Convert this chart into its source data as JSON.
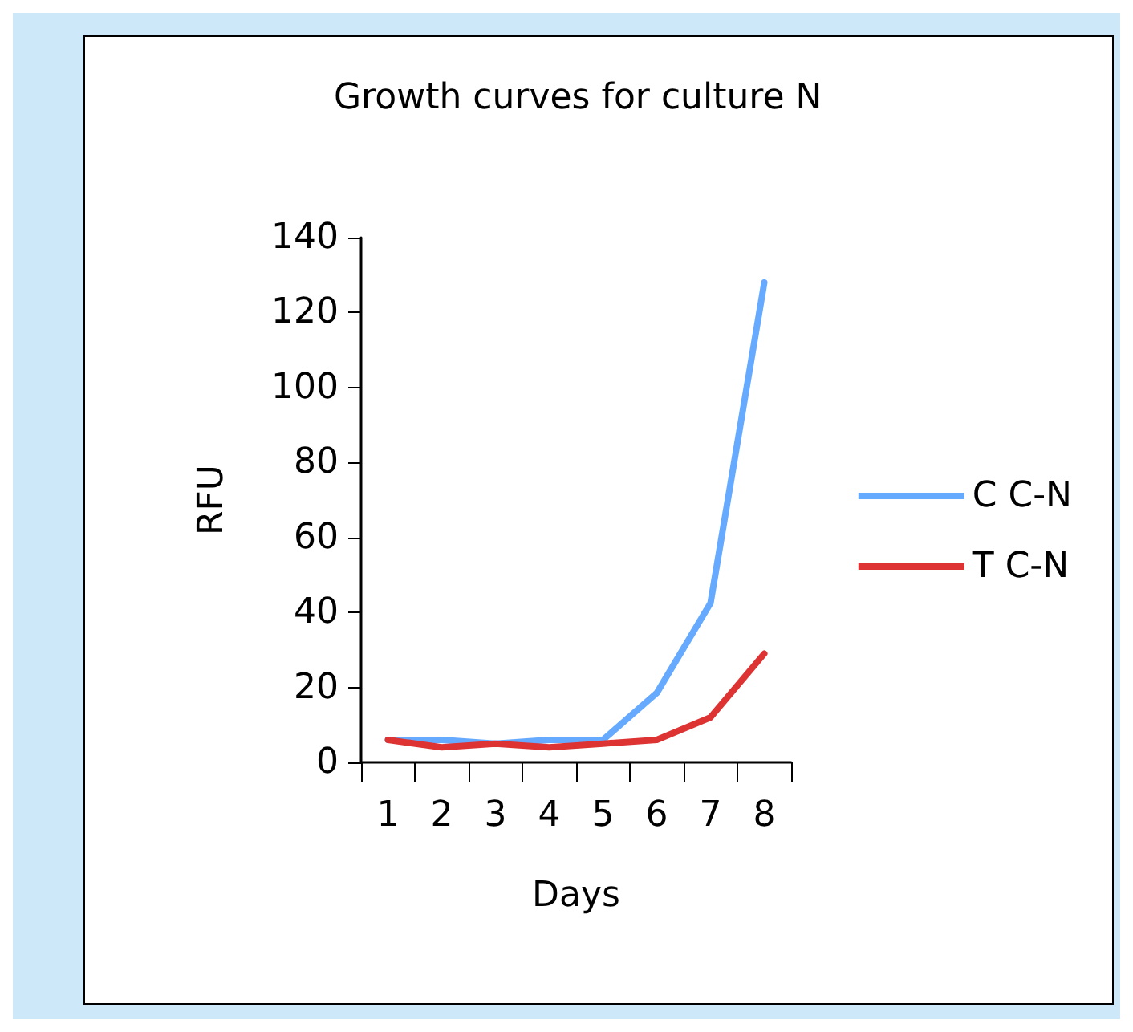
{
  "chart_data": {
    "type": "line",
    "title": "Growth curves for culture N",
    "xlabel": "Days",
    "ylabel": "RFU",
    "categories": [
      "1",
      "2",
      "3",
      "4",
      "5",
      "6",
      "7",
      "8"
    ],
    "series": [
      {
        "name": "C C-N",
        "color": "#66aaff",
        "values": [
          6,
          6,
          5,
          6,
          6,
          18.5,
          42.5,
          128
        ]
      },
      {
        "name": "T C-N",
        "color": "#dd3333",
        "values": [
          6,
          4,
          5,
          4,
          5,
          6,
          12,
          29
        ]
      }
    ],
    "ylim": [
      0,
      140
    ],
    "yticks": [
      0,
      20,
      40,
      60,
      80,
      100,
      120,
      140
    ],
    "grid": false,
    "legend": "right",
    "marker": "none",
    "line_style": "solid"
  }
}
